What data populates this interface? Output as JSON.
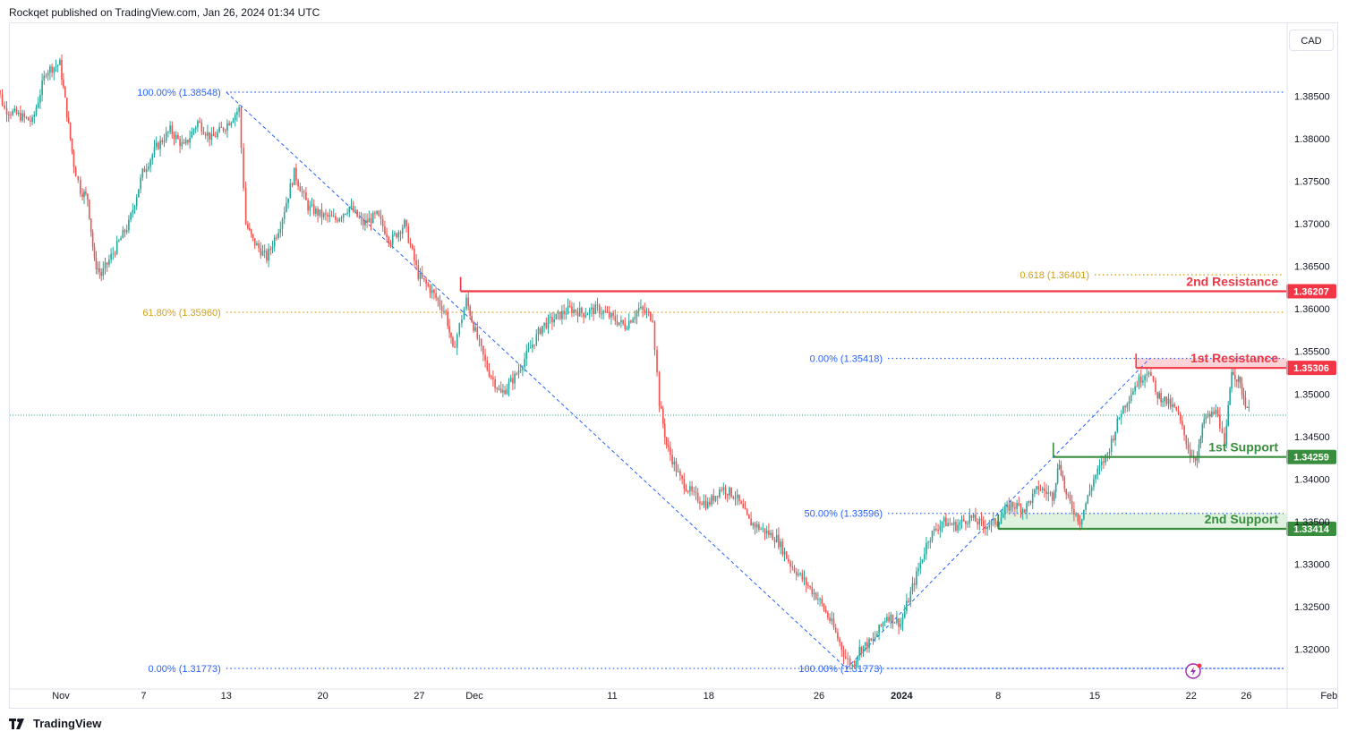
{
  "header": {
    "publisher": "Rockqet published on TradingView.com, Jan 26, 2024 01:34 UTC"
  },
  "footer": {
    "brand": "TradingView"
  },
  "price_axis": {
    "currency": "CAD"
  },
  "colors": {
    "up": "#26a69a",
    "down": "#ef5350",
    "fib_blue": "#2962ff",
    "fib_gold": "#d4a017",
    "resistance": "#f23645",
    "support": "#388e3c"
  },
  "chart_data": {
    "type": "candlestick",
    "title": "",
    "y_ticks": [
      "1.38500",
      "1.38000",
      "1.37500",
      "1.37000",
      "1.36500",
      "1.36000",
      "1.35500",
      "1.35000",
      "1.34500",
      "1.34000",
      "1.33500",
      "1.33000",
      "1.32500",
      "1.32000"
    ],
    "x_ticks": [
      {
        "label": "Nov",
        "date": "2023-11-01",
        "bold": false
      },
      {
        "label": "7",
        "date": "2023-11-07",
        "bold": false
      },
      {
        "label": "13",
        "date": "2023-11-13",
        "bold": false
      },
      {
        "label": "20",
        "date": "2023-11-20",
        "bold": false
      },
      {
        "label": "27",
        "date": "2023-11-27",
        "bold": false
      },
      {
        "label": "Dec",
        "date": "2023-12-01",
        "bold": false
      },
      {
        "label": "11",
        "date": "2023-12-11",
        "bold": false
      },
      {
        "label": "18",
        "date": "2023-12-18",
        "bold": false
      },
      {
        "label": "26",
        "date": "2023-12-26",
        "bold": false
      },
      {
        "label": "2024",
        "date": "2024-01-01",
        "bold": true
      },
      {
        "label": "8",
        "date": "2024-01-08",
        "bold": false
      },
      {
        "label": "15",
        "date": "2024-01-15",
        "bold": false
      },
      {
        "label": "22",
        "date": "2024-01-22",
        "bold": false
      },
      {
        "label": "26",
        "date": "2024-01-26",
        "bold": false
      },
      {
        "label": "Feb",
        "date": "2024-02-01",
        "bold": false
      }
    ],
    "price_path": [
      {
        "date": "2023-10-27",
        "price": 1.381
      },
      {
        "date": "2023-10-27T12",
        "price": 1.3858
      },
      {
        "date": "2023-10-28",
        "price": 1.3835
      },
      {
        "date": "2023-10-30",
        "price": 1.382
      },
      {
        "date": "2023-10-31",
        "price": 1.388
      },
      {
        "date": "2023-11-01",
        "price": 1.3888
      },
      {
        "date": "2023-11-01T12",
        "price": 1.383
      },
      {
        "date": "2023-11-02",
        "price": 1.377
      },
      {
        "date": "2023-11-02T12",
        "price": 1.374
      },
      {
        "date": "2023-11-03",
        "price": 1.373
      },
      {
        "date": "2023-11-03T12",
        "price": 1.3655
      },
      {
        "date": "2023-11-04",
        "price": 1.364
      },
      {
        "date": "2023-11-06",
        "price": 1.37
      },
      {
        "date": "2023-11-07",
        "price": 1.376
      },
      {
        "date": "2023-11-08",
        "price": 1.379
      },
      {
        "date": "2023-11-09",
        "price": 1.381
      },
      {
        "date": "2023-11-10",
        "price": 1.379
      },
      {
        "date": "2023-11-11",
        "price": 1.382
      },
      {
        "date": "2023-11-12",
        "price": 1.38
      },
      {
        "date": "2023-11-13",
        "price": 1.3815
      },
      {
        "date": "2023-11-14",
        "price": 1.3835
      },
      {
        "date": "2023-11-14T12",
        "price": 1.37
      },
      {
        "date": "2023-11-15",
        "price": 1.368
      },
      {
        "date": "2023-11-16",
        "price": 1.366
      },
      {
        "date": "2023-11-17",
        "price": 1.37
      },
      {
        "date": "2023-11-18",
        "price": 1.376
      },
      {
        "date": "2023-11-19",
        "price": 1.372
      },
      {
        "date": "2023-11-20",
        "price": 1.371
      },
      {
        "date": "2023-11-21",
        "price": 1.3705
      },
      {
        "date": "2023-11-22",
        "price": 1.372
      },
      {
        "date": "2023-11-23",
        "price": 1.37
      },
      {
        "date": "2023-11-24",
        "price": 1.371
      },
      {
        "date": "2023-11-25",
        "price": 1.368
      },
      {
        "date": "2023-11-26",
        "price": 1.37
      },
      {
        "date": "2023-11-27",
        "price": 1.364
      },
      {
        "date": "2023-11-28",
        "price": 1.362
      },
      {
        "date": "2023-11-29",
        "price": 1.3595
      },
      {
        "date": "2023-11-29T12",
        "price": 1.355
      },
      {
        "date": "2023-11-30",
        "price": 1.358
      },
      {
        "date": "2023-11-30T12",
        "price": 1.361
      },
      {
        "date": "2023-12-01",
        "price": 1.358
      },
      {
        "date": "2023-12-02",
        "price": 1.353
      },
      {
        "date": "2023-12-03",
        "price": 1.35
      },
      {
        "date": "2023-12-04",
        "price": 1.352
      },
      {
        "date": "2023-12-05",
        "price": 1.355
      },
      {
        "date": "2023-12-06",
        "price": 1.358
      },
      {
        "date": "2023-12-07",
        "price": 1.359
      },
      {
        "date": "2023-12-08",
        "price": 1.36
      },
      {
        "date": "2023-12-09",
        "price": 1.3595
      },
      {
        "date": "2023-12-10",
        "price": 1.36
      },
      {
        "date": "2023-12-11",
        "price": 1.359
      },
      {
        "date": "2023-12-12",
        "price": 1.358
      },
      {
        "date": "2023-12-13",
        "price": 1.36
      },
      {
        "date": "2023-12-14",
        "price": 1.359
      },
      {
        "date": "2023-12-14T12",
        "price": 1.349
      },
      {
        "date": "2023-12-15",
        "price": 1.344
      },
      {
        "date": "2023-12-16",
        "price": 1.34
      },
      {
        "date": "2023-12-17",
        "price": 1.338
      },
      {
        "date": "2023-12-18",
        "price": 1.337
      },
      {
        "date": "2023-12-19",
        "price": 1.339
      },
      {
        "date": "2023-12-20",
        "price": 1.338
      },
      {
        "date": "2023-12-21",
        "price": 1.335
      },
      {
        "date": "2023-12-22",
        "price": 1.334
      },
      {
        "date": "2023-12-23",
        "price": 1.333
      },
      {
        "date": "2023-12-24",
        "price": 1.33
      },
      {
        "date": "2023-12-25",
        "price": 1.328
      },
      {
        "date": "2023-12-26",
        "price": 1.326
      },
      {
        "date": "2023-12-27",
        "price": 1.323
      },
      {
        "date": "2023-12-28",
        "price": 1.319
      },
      {
        "date": "2023-12-28T12",
        "price": 1.318
      },
      {
        "date": "2023-12-29",
        "price": 1.32
      },
      {
        "date": "2023-12-30",
        "price": 1.321
      },
      {
        "date": "2023-12-31",
        "price": 1.324
      },
      {
        "date": "2024-01-01",
        "price": 1.323
      },
      {
        "date": "2024-01-02",
        "price": 1.328
      },
      {
        "date": "2024-01-03",
        "price": 1.333
      },
      {
        "date": "2024-01-04",
        "price": 1.335
      },
      {
        "date": "2024-01-05",
        "price": 1.3345
      },
      {
        "date": "2024-01-06",
        "price": 1.3355
      },
      {
        "date": "2024-01-07",
        "price": 1.3345
      },
      {
        "date": "2024-01-08",
        "price": 1.335
      },
      {
        "date": "2024-01-09",
        "price": 1.337
      },
      {
        "date": "2024-01-10",
        "price": 1.3365
      },
      {
        "date": "2024-01-11",
        "price": 1.339
      },
      {
        "date": "2024-01-12",
        "price": 1.338
      },
      {
        "date": "2024-01-12T12",
        "price": 1.342
      },
      {
        "date": "2024-01-13",
        "price": 1.338
      },
      {
        "date": "2024-01-14",
        "price": 1.335
      },
      {
        "date": "2024-01-15",
        "price": 1.34
      },
      {
        "date": "2024-01-16",
        "price": 1.343
      },
      {
        "date": "2024-01-17",
        "price": 1.348
      },
      {
        "date": "2024-01-18",
        "price": 1.351
      },
      {
        "date": "2024-01-19",
        "price": 1.353
      },
      {
        "date": "2024-01-19T12",
        "price": 1.35
      },
      {
        "date": "2024-01-20",
        "price": 1.3495
      },
      {
        "date": "2024-01-21",
        "price": 1.348
      },
      {
        "date": "2024-01-22",
        "price": 1.343
      },
      {
        "date": "2024-01-22T12",
        "price": 1.3425
      },
      {
        "date": "2024-01-23",
        "price": 1.347
      },
      {
        "date": "2024-01-24",
        "price": 1.348
      },
      {
        "date": "2024-01-24T12",
        "price": 1.3435
      },
      {
        "date": "2024-01-25",
        "price": 1.353
      },
      {
        "date": "2024-01-25T12",
        "price": 1.3515
      },
      {
        "date": "2024-01-26",
        "price": 1.349
      },
      {
        "date": "2024-01-26T06",
        "price": 1.348
      }
    ],
    "last_price": 1.3475,
    "fib_levels": [
      {
        "label": "100.00% (1.38548)",
        "price": 1.38548,
        "from": "2023-11-13",
        "to": "2024-02-05",
        "style": "blue"
      },
      {
        "label": "61.80% (1.35960)",
        "price": 1.3596,
        "from": "2023-11-13",
        "to": "2024-02-05",
        "style": "gold"
      },
      {
        "label": "0.00% (1.31773)",
        "price": 1.31773,
        "from": "2023-11-13",
        "to": "2024-02-05",
        "style": "blue"
      },
      {
        "label": "0.618 (1.36401)",
        "price": 1.36401,
        "from": "2024-01-15",
        "to": "2024-02-05",
        "style": "gold"
      },
      {
        "label": "0.00% (1.35418)",
        "price": 1.35418,
        "from": "2023-12-31",
        "to": "2024-02-05",
        "style": "blue"
      },
      {
        "label": "50.00% (1.33596)",
        "price": 1.33596,
        "from": "2023-12-31",
        "to": "2024-02-05",
        "style": "blue"
      },
      {
        "label": "100.00% (1.31773)",
        "price": 1.31773,
        "from": "2023-12-31",
        "to": "2024-02-05",
        "style": "blue"
      }
    ],
    "fib_trendlines": [
      {
        "from": {
          "date": "2023-11-13",
          "price": 1.38548
        },
        "to": {
          "date": "2023-12-28",
          "price": 1.31773
        }
      },
      {
        "from": {
          "date": "2023-12-28",
          "price": 1.31773
        },
        "to": {
          "date": "2024-01-19",
          "price": 1.35418
        }
      }
    ],
    "levels": [
      {
        "name": "2nd Resistance",
        "price": 1.36207,
        "price_label": "1.36207",
        "kind": "resistance",
        "from": "2023-11-30"
      },
      {
        "name": "1st Resistance",
        "price": 1.35306,
        "price_label": "1.35306",
        "kind": "resistance",
        "from": "2024-01-18",
        "zone_top": 1.35418
      },
      {
        "name": "1st Support",
        "price": 1.34259,
        "price_label": "1.34259",
        "kind": "support",
        "from": "2024-01-12"
      },
      {
        "name": "2nd Support",
        "price": 1.33414,
        "price_label": "1.33414",
        "kind": "support",
        "from": "2024-01-08",
        "zone_top": 1.33596
      }
    ]
  }
}
